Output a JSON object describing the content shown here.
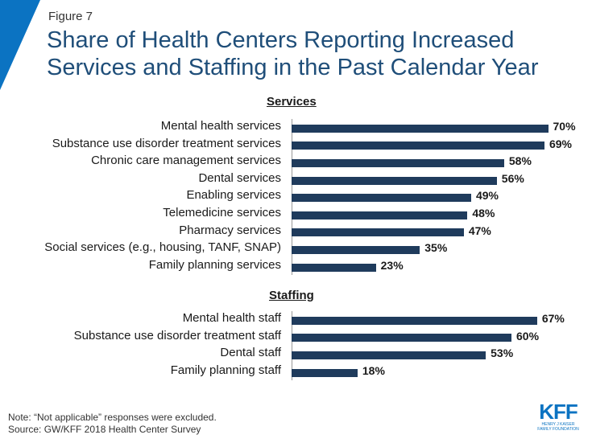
{
  "figure_label": "Figure 7",
  "title_line1": "Share of Health Centers Reporting Increased",
  "title_line2": "Services and Staffing in the Past Calendar Year",
  "note": "Note: “Not applicable” responses were excluded.",
  "source": "Source: GW/KFF 2018 Health Center Survey",
  "logo": {
    "mark": "KFF",
    "line1": "HENRY J KAISER",
    "line2": "FAMILY FOUNDATION"
  },
  "colors": {
    "bar": "#1f3b5c",
    "accent": "#0b73c2",
    "title": "#1f4e79"
  },
  "chart_data": [
    {
      "type": "bar",
      "orientation": "horizontal",
      "title": "Services",
      "categories": [
        "Mental health services",
        "Substance use disorder treatment services",
        "Chronic care management services",
        "Dental services",
        "Enabling services",
        "Telemedicine services",
        "Pharmacy services",
        "Social services (e.g., housing, TANF, SNAP)",
        "Family planning services"
      ],
      "values": [
        70,
        69,
        58,
        56,
        49,
        48,
        47,
        35,
        23
      ],
      "value_labels": [
        "70%",
        "69%",
        "58%",
        "56%",
        "49%",
        "48%",
        "47%",
        "35%",
        "23%"
      ],
      "xlim": [
        0,
        100
      ],
      "grid": false
    },
    {
      "type": "bar",
      "orientation": "horizontal",
      "title": "Staffing",
      "categories": [
        "Mental health staff",
        "Substance use disorder treatment staff",
        "Dental staff",
        "Family planning staff"
      ],
      "values": [
        67,
        60,
        53,
        18
      ],
      "value_labels": [
        "67%",
        "60%",
        "53%",
        "18%"
      ],
      "xlim": [
        0,
        100
      ],
      "grid": false
    }
  ]
}
